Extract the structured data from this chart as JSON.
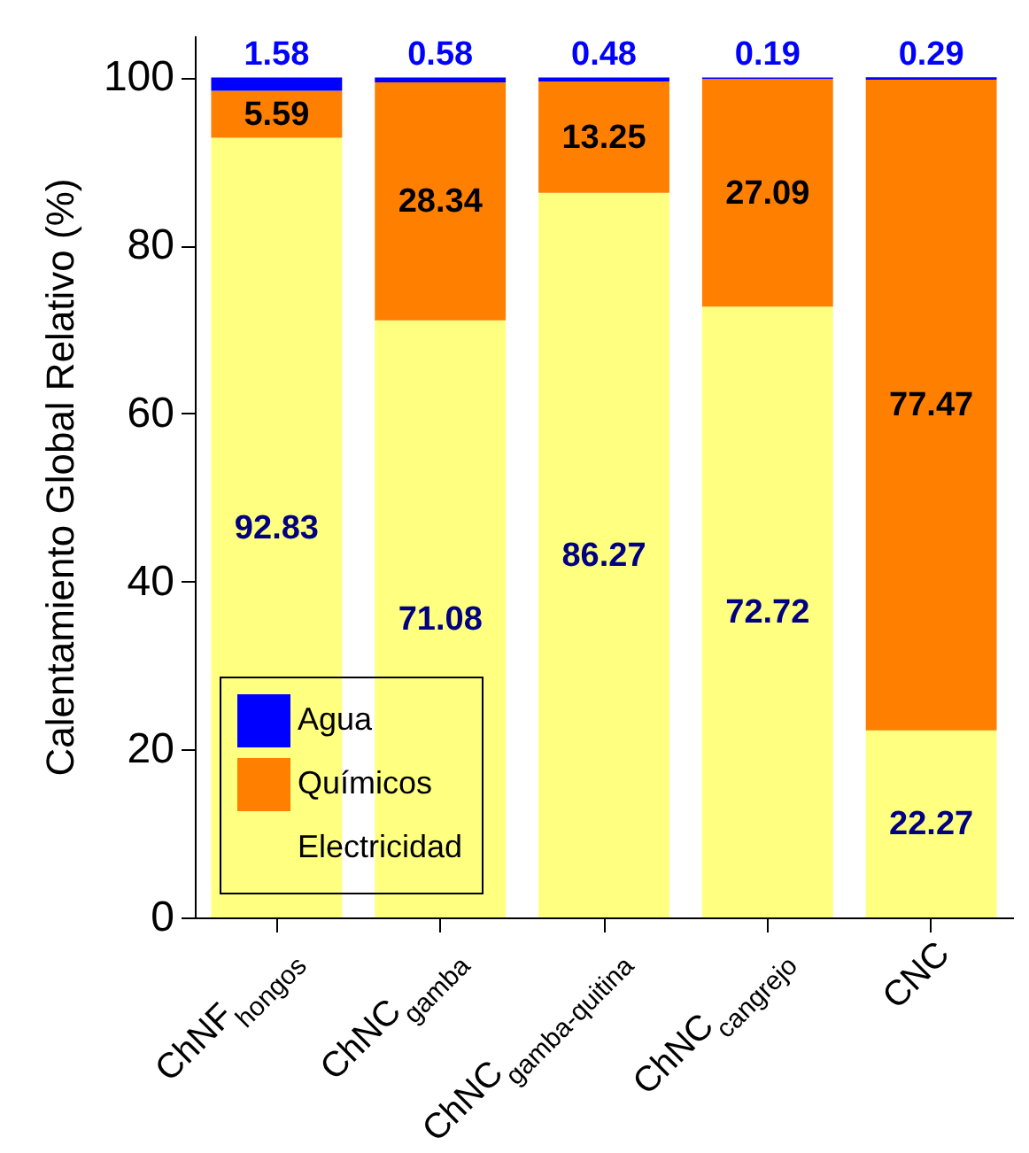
{
  "chart_data": {
    "type": "bar",
    "stacked": true,
    "ylabel": "Calentamiento Global Relativo (%)",
    "categories": [
      "ChNF$_{hongos}$",
      "ChNC$_{gamba}$",
      "ChNC$_{gamba-quitina}$",
      "ChNC$_{cangrejo}$",
      "CNC"
    ],
    "series": [
      {
        "name": "Electricidad",
        "color": "#ffff80",
        "values": [
          92.83,
          71.08,
          86.27,
          72.72,
          22.27
        ]
      },
      {
        "name": "Químicos",
        "color": "#ff8000",
        "values": [
          5.59,
          28.34,
          13.25,
          27.09,
          77.47
        ]
      },
      {
        "name": "Agua",
        "color": "#0000ff",
        "values": [
          1.58,
          0.58,
          0.48,
          0.19,
          0.29
        ]
      }
    ],
    "ylim": [
      0,
      105
    ],
    "yticks": [
      0,
      20,
      40,
      60,
      80,
      100
    ],
    "data_labels": true,
    "legend": "bottom left",
    "grid": false
  }
}
